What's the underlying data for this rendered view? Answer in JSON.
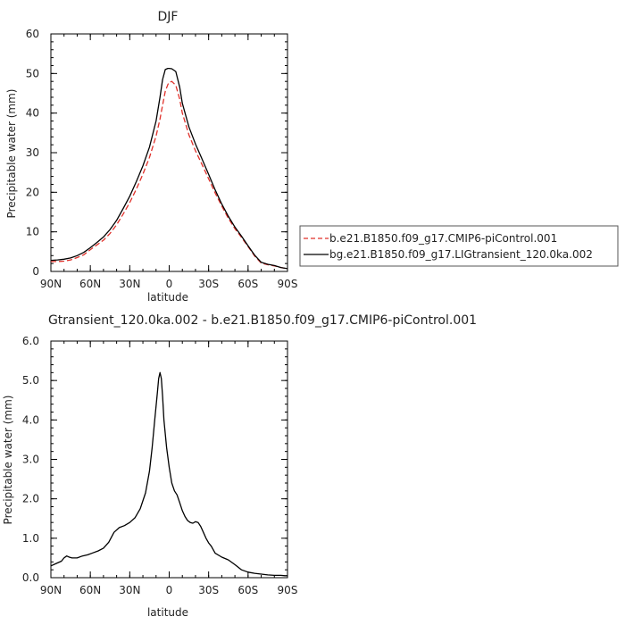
{
  "chart_data": [
    {
      "type": "line",
      "title": "DJF",
      "xlabel": "latitude",
      "ylabel": "Precipitable water (mm)",
      "xlim": [
        90,
        -90
      ],
      "ylim": [
        0,
        60
      ],
      "x_ticks": [
        90,
        60,
        30,
        0,
        -30,
        -60,
        -90
      ],
      "x_tick_labels": [
        "90N",
        "60N",
        "30N",
        "0",
        "30S",
        "60S",
        "90S"
      ],
      "y_ticks": [
        0,
        10,
        20,
        30,
        40,
        50,
        60
      ],
      "y_tick_labels": [
        "0",
        "10",
        "20",
        "30",
        "40",
        "50",
        "60"
      ],
      "legend_position": "right",
      "series": [
        {
          "name": "b.e21.B1850.f09_g17.CMIP6-piControl.001",
          "color": "#e0302a",
          "dash": "dashed",
          "x": [
            90,
            85,
            80,
            75,
            70,
            65,
            60,
            55,
            50,
            45,
            40,
            35,
            30,
            25,
            20,
            15,
            10,
            7,
            5,
            3,
            1,
            0,
            -2,
            -5,
            -8,
            -10,
            -15,
            -20,
            -25,
            -30,
            -35,
            -40,
            -45,
            -50,
            -55,
            -60,
            -65,
            -70,
            -75,
            -80,
            -85,
            -90
          ],
          "y": [
            2.5,
            2.5,
            2.6,
            2.9,
            3.5,
            4.2,
            5.5,
            6.7,
            7.9,
            9.6,
            11.8,
            14.5,
            17.4,
            20.8,
            24.6,
            28.8,
            34.2,
            38.5,
            42.0,
            45.5,
            47.2,
            47.8,
            48.0,
            47.0,
            43.5,
            40.0,
            34.5,
            30.5,
            27.0,
            23.4,
            19.8,
            16.5,
            13.4,
            10.8,
            8.6,
            6.3,
            3.9,
            2.1,
            1.7,
            1.4,
            1.0,
            0.7
          ]
        },
        {
          "name": "bg.e21.B1850.f09_g17.LIGtransient_120.0ka.002",
          "color": "#000000",
          "dash": "solid",
          "x": [
            90,
            85,
            80,
            75,
            70,
            65,
            60,
            55,
            50,
            45,
            40,
            35,
            30,
            25,
            20,
            15,
            10,
            7,
            5,
            3,
            1,
            0,
            -2,
            -5,
            -8,
            -10,
            -15,
            -20,
            -25,
            -30,
            -35,
            -40,
            -45,
            -50,
            -55,
            -60,
            -65,
            -70,
            -75,
            -80,
            -85,
            -90
          ],
          "y": [
            2.8,
            2.9,
            3.1,
            3.4,
            4.0,
            4.8,
            6.0,
            7.3,
            8.7,
            10.6,
            12.9,
            15.9,
            19.0,
            22.7,
            26.7,
            31.4,
            38.0,
            44.0,
            48.5,
            51.0,
            51.3,
            51.3,
            51.2,
            50.5,
            46.5,
            42.5,
            36.5,
            32.2,
            28.4,
            24.5,
            20.6,
            17.0,
            13.9,
            11.2,
            8.9,
            6.5,
            4.1,
            2.3,
            1.8,
            1.5,
            1.0,
            0.7
          ]
        }
      ]
    },
    {
      "type": "line",
      "title": "Gtransient_120.0ka.002 - b.e21.B1850.f09_g17.CMIP6-piControl.001",
      "xlabel": "latitude",
      "ylabel": "Precipitable water (mm)",
      "xlim": [
        90,
        -90
      ],
      "ylim": [
        0,
        6
      ],
      "x_ticks": [
        90,
        60,
        30,
        0,
        -30,
        -60,
        -90
      ],
      "x_tick_labels": [
        "90N",
        "60N",
        "30N",
        "0",
        "30S",
        "60S",
        "90S"
      ],
      "y_ticks": [
        0,
        1,
        2,
        3,
        4,
        5,
        6
      ],
      "y_tick_labels": [
        "0.0",
        "1.0",
        "2.0",
        "3.0",
        "4.0",
        "5.0",
        "6.0"
      ],
      "series": [
        {
          "color": "#000000",
          "dash": "solid",
          "x": [
            90,
            86,
            82,
            80,
            78,
            76,
            74,
            70,
            66,
            62,
            58,
            54,
            50,
            46,
            42,
            38,
            34,
            30,
            26,
            22,
            18,
            15,
            13,
            11,
            9,
            8,
            7,
            6,
            5,
            4,
            2,
            0,
            -2,
            -4,
            -6,
            -8,
            -10,
            -12,
            -14,
            -16,
            -18,
            -20,
            -22,
            -24,
            -26,
            -28,
            -30,
            -32,
            -35,
            -40,
            -45,
            -50,
            -55,
            -60,
            -65,
            -70,
            -75,
            -80,
            -85,
            -88,
            -90
          ],
          "y": [
            0.3,
            0.36,
            0.42,
            0.5,
            0.55,
            0.52,
            0.5,
            0.5,
            0.55,
            0.58,
            0.63,
            0.68,
            0.75,
            0.9,
            1.15,
            1.27,
            1.32,
            1.4,
            1.52,
            1.75,
            2.15,
            2.7,
            3.3,
            4.0,
            4.7,
            5.05,
            5.2,
            5.05,
            4.6,
            4.0,
            3.3,
            2.8,
            2.4,
            2.2,
            2.1,
            1.9,
            1.7,
            1.55,
            1.45,
            1.4,
            1.38,
            1.42,
            1.4,
            1.3,
            1.15,
            1.0,
            0.88,
            0.8,
            0.62,
            0.52,
            0.45,
            0.33,
            0.2,
            0.14,
            0.11,
            0.09,
            0.07,
            0.06,
            0.06,
            0.05,
            0.05
          ]
        }
      ]
    }
  ]
}
